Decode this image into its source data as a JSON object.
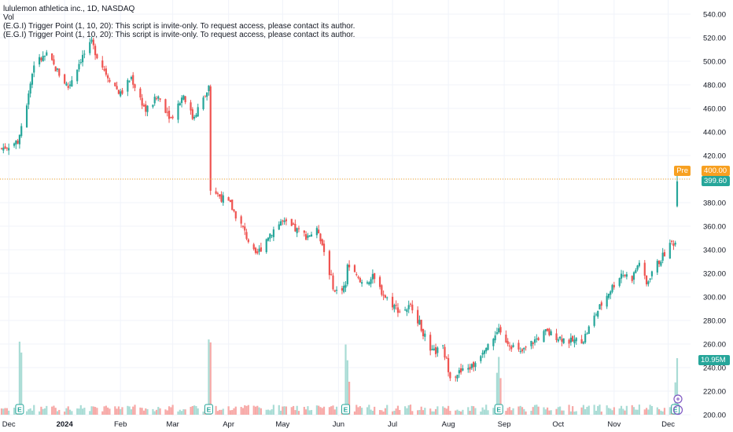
{
  "legend": {
    "title": "lululemon athletica inc., 1D, NASDAQ",
    "vol": "Vol",
    "indicator_1": "(E.G.I) Trigger Point  (1, 10, 20): This script is invite-only. To request access, please contact its author.",
    "indicator_2": "(E.G.I) Trigger Point  (1, 10, 20): This script is invite-only. To request access, please contact its author."
  },
  "price_axis_ticks": [
    "540.00",
    "520.00",
    "500.00",
    "480.00",
    "460.00",
    "440.00",
    "420.00",
    "400.00",
    "380.00",
    "360.00",
    "340.00",
    "320.00",
    "300.00",
    "280.00",
    "260.00",
    "240.00",
    "220.00",
    "200.00"
  ],
  "time_axis_ticks": [
    "Dec",
    "2024",
    "Feb",
    "Mar",
    "Apr",
    "May",
    "Jun",
    "Jul",
    "Aug",
    "Sep",
    "Oct",
    "Nov",
    "Dec"
  ],
  "tags": {
    "pre_label": "Pre",
    "pre_value": "400.00",
    "last_value": "399.60",
    "volume_value": "10.95M"
  },
  "markers": {
    "earnings_letter": "E",
    "dividend_symbol": "+"
  },
  "colors": {
    "up": "#26a69a",
    "down": "#ef5350",
    "volume_up": "#a9dcd5",
    "volume_down": "#f7a9a7",
    "pre_line": "#f7a021",
    "grid": "#f0f3fa"
  },
  "chart_data": {
    "type": "candlestick",
    "y_axis_range": [
      200,
      540
    ],
    "x_axis_range": [
      "2023-11-27",
      "2024-12-06"
    ],
    "earnings_marker_dates": [
      "2023-12-07",
      "2024-03-21",
      "2024-06-05",
      "2024-08-29",
      "2024-12-05"
    ],
    "close_keypoints": [
      {
        "date": "2023-11-27",
        "close": 426
      },
      {
        "date": "2023-12-06",
        "close": 432
      },
      {
        "date": "2023-12-11",
        "close": 465
      },
      {
        "date": "2023-12-15",
        "close": 498
      },
      {
        "date": "2023-12-22",
        "close": 505
      },
      {
        "date": "2024-01-03",
        "close": 478
      },
      {
        "date": "2024-01-10",
        "close": 502
      },
      {
        "date": "2024-01-16",
        "close": 515
      },
      {
        "date": "2024-01-19",
        "close": 505
      },
      {
        "date": "2024-01-24",
        "close": 490
      },
      {
        "date": "2024-02-01",
        "close": 472
      },
      {
        "date": "2024-02-07",
        "close": 486
      },
      {
        "date": "2024-02-15",
        "close": 458
      },
      {
        "date": "2024-02-22",
        "close": 470
      },
      {
        "date": "2024-02-29",
        "close": 452
      },
      {
        "date": "2024-03-07",
        "close": 472
      },
      {
        "date": "2024-03-12",
        "close": 452
      },
      {
        "date": "2024-03-19",
        "close": 470
      },
      {
        "date": "2024-03-21",
        "close": 478
      },
      {
        "date": "2024-03-22",
        "close": 392
      },
      {
        "date": "2024-04-02",
        "close": 378
      },
      {
        "date": "2024-04-09",
        "close": 358
      },
      {
        "date": "2024-04-16",
        "close": 334
      },
      {
        "date": "2024-04-23",
        "close": 352
      },
      {
        "date": "2024-04-30",
        "close": 364
      },
      {
        "date": "2024-05-07",
        "close": 358
      },
      {
        "date": "2024-05-14",
        "close": 352
      },
      {
        "date": "2024-05-21",
        "close": 356
      },
      {
        "date": "2024-05-30",
        "close": 304
      },
      {
        "date": "2024-06-05",
        "close": 310
      },
      {
        "date": "2024-06-06",
        "close": 328
      },
      {
        "date": "2024-06-13",
        "close": 312
      },
      {
        "date": "2024-06-20",
        "close": 316
      },
      {
        "date": "2024-06-27",
        "close": 300
      },
      {
        "date": "2024-07-05",
        "close": 288
      },
      {
        "date": "2024-07-12",
        "close": 292
      },
      {
        "date": "2024-07-18",
        "close": 270
      },
      {
        "date": "2024-07-22",
        "close": 252
      },
      {
        "date": "2024-07-29",
        "close": 256
      },
      {
        "date": "2024-08-02",
        "close": 234
      },
      {
        "date": "2024-08-08",
        "close": 236
      },
      {
        "date": "2024-08-15",
        "close": 242
      },
      {
        "date": "2024-08-22",
        "close": 260
      },
      {
        "date": "2024-08-29",
        "close": 270
      },
      {
        "date": "2024-09-03",
        "close": 262
      },
      {
        "date": "2024-09-10",
        "close": 252
      },
      {
        "date": "2024-09-17",
        "close": 262
      },
      {
        "date": "2024-09-24",
        "close": 270
      },
      {
        "date": "2024-10-01",
        "close": 266
      },
      {
        "date": "2024-10-08",
        "close": 262
      },
      {
        "date": "2024-10-15",
        "close": 264
      },
      {
        "date": "2024-10-22",
        "close": 286
      },
      {
        "date": "2024-10-29",
        "close": 304
      },
      {
        "date": "2024-11-05",
        "close": 320
      },
      {
        "date": "2024-11-11",
        "close": 316
      },
      {
        "date": "2024-11-15",
        "close": 330
      },
      {
        "date": "2024-11-19",
        "close": 310
      },
      {
        "date": "2024-11-22",
        "close": 322
      },
      {
        "date": "2024-11-26",
        "close": 330
      },
      {
        "date": "2024-12-03",
        "close": 346
      },
      {
        "date": "2024-12-05",
        "close": 346
      },
      {
        "date": "2024-12-06",
        "close": 400
      }
    ],
    "last_close": 399.6,
    "pre_market_price": 400.0,
    "last_volume": "10.95M",
    "volume_spike_dates": [
      "2023-12-08",
      "2024-03-22",
      "2024-06-06",
      "2024-08-29",
      "2024-12-06"
    ]
  }
}
